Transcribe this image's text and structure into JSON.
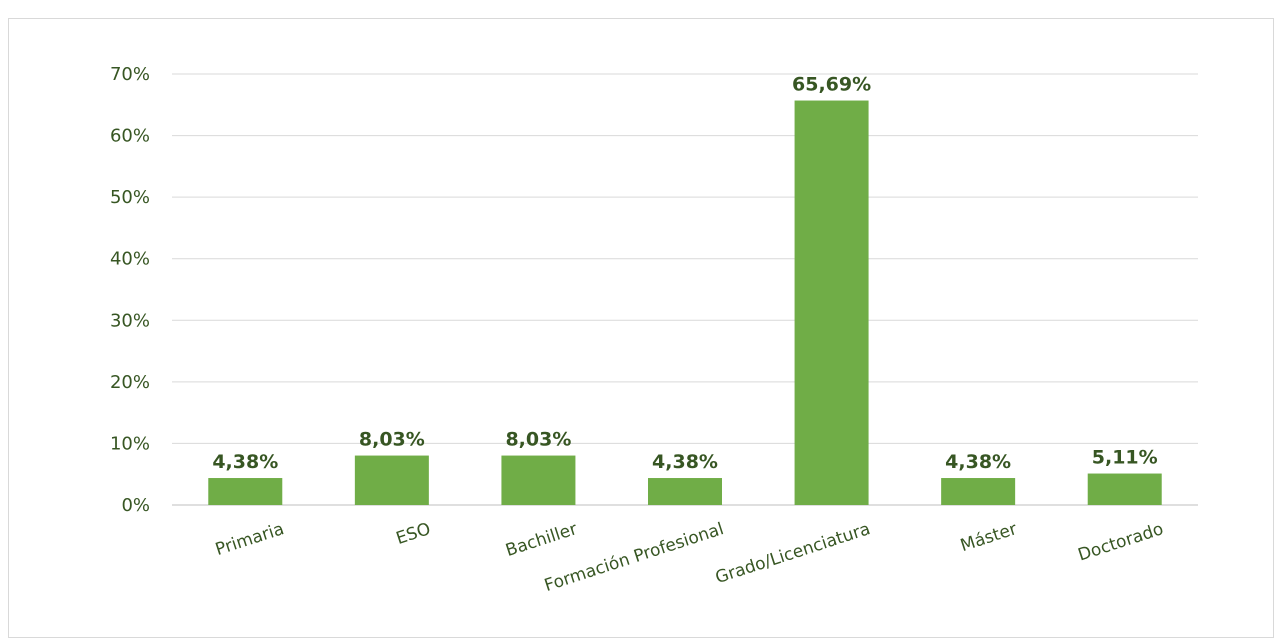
{
  "chart_data": {
    "type": "bar",
    "categories": [
      "Primaria",
      "ESO",
      "Bachiller",
      "Formación Profesional",
      "Grado/Licenciatura",
      "Máster",
      "Doctorado"
    ],
    "values": [
      4.38,
      8.03,
      8.03,
      4.38,
      65.69,
      4.38,
      5.11
    ],
    "data_labels": [
      "4,38%",
      "8,03%",
      "8,03%",
      "4,38%",
      "65,69%",
      "4,38%",
      "5,11%"
    ],
    "y_ticks": [
      0,
      10,
      20,
      30,
      40,
      50,
      60,
      70
    ],
    "y_tick_labels": [
      "0%",
      "10%",
      "20%",
      "30%",
      "40%",
      "50%",
      "60%",
      "70%"
    ],
    "ylim": [
      0,
      70
    ],
    "grid": true,
    "legend": "none",
    "bar_color": "#70ad47",
    "label_color": "#375623"
  }
}
